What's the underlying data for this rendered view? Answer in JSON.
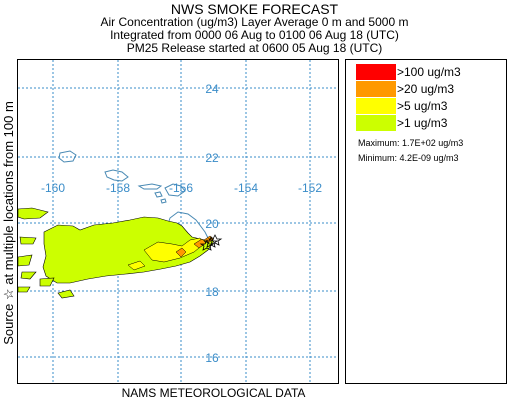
{
  "header": {
    "title": "NWS SMOKE FORECAST",
    "line2": "Air Concentration (ug/m3) Layer Average    0 m  and  5000 m",
    "line3": "Integrated from 0000 06 Aug to 0100 06 Aug 18 (UTC)",
    "line4": "PM25 Release started at 0600 05 Aug 18 (UTC)"
  },
  "side_label": "Source ☆    at multiple locations    from  100 m",
  "bottom_label": "NAMS METEOROLOGICAL DATA",
  "map": {
    "lat_labels": [
      "24",
      "22",
      "20",
      "18",
      "16"
    ],
    "lon_labels": [
      "-160",
      "-158",
      "-156",
      "-154",
      "-152"
    ],
    "colors": {
      "grid": "#3a8cc8",
      "coast": "#4a8ab4",
      "plume_low": "#ccff00",
      "plume_mid": "#ffff00",
      "plume_high": "#ff9900",
      "plume_top": "#ff0000"
    }
  },
  "legend": {
    "items": [
      {
        "label": ">100 ug/m3",
        "color": "#ff0000"
      },
      {
        "label": ">20 ug/m3",
        "color": "#ff9900"
      },
      {
        "label": ">5 ug/m3",
        "color": "#ffff00"
      },
      {
        "label": ">1 ug/m3",
        "color": "#ccff00"
      }
    ],
    "maximum": "Maximum: 1.7E+02 ug/m3",
    "minimum": "Minimum: 4.2E-09 ug/m3"
  }
}
